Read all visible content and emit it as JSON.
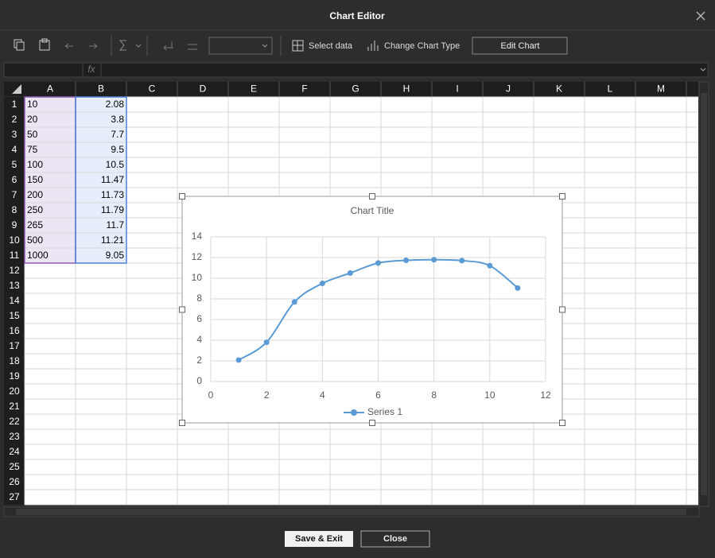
{
  "window": {
    "title": "Chart Editor"
  },
  "toolbar": {
    "select_data": "Select data",
    "change_chart_type": "Change Chart Type",
    "edit_chart": "Edit Chart"
  },
  "formula_bar": {
    "label": "fx"
  },
  "sheet": {
    "columns": [
      "A",
      "B",
      "C",
      "D",
      "E",
      "F",
      "G",
      "H",
      "I",
      "J",
      "K",
      "L",
      "M"
    ],
    "row_numbers": [
      1,
      2,
      3,
      4,
      5,
      6,
      7,
      8,
      9,
      10,
      11,
      12,
      13,
      14,
      15,
      16,
      17,
      18,
      19,
      20,
      21,
      22,
      23,
      24,
      25,
      26,
      27
    ],
    "cells": [
      [
        "10",
        "2.08"
      ],
      [
        "20",
        "3.8"
      ],
      [
        "50",
        "7.7"
      ],
      [
        "75",
        "9.5"
      ],
      [
        "100",
        "10.5"
      ],
      [
        "150",
        "11.47"
      ],
      [
        "200",
        "11.73"
      ],
      [
        "250",
        "11.79"
      ],
      [
        "265",
        "11.7"
      ],
      [
        "500",
        "11.21"
      ],
      [
        "1000",
        "9.05"
      ]
    ]
  },
  "chart_data": {
    "type": "line",
    "title": "Chart Title",
    "x": [
      1,
      2,
      3,
      4,
      5,
      6,
      7,
      8,
      9,
      10,
      11
    ],
    "series": [
      {
        "name": "Series 1",
        "color": "#5b9bd5",
        "values": [
          2.08,
          3.8,
          7.7,
          9.5,
          10.5,
          11.47,
          11.73,
          11.79,
          11.7,
          11.21,
          9.05
        ]
      }
    ],
    "xlim": [
      0,
      12
    ],
    "xticks": [
      0,
      2,
      4,
      6,
      8,
      10,
      12
    ],
    "ylim": [
      0,
      14
    ],
    "yticks": [
      0,
      2,
      4,
      6,
      8,
      10,
      12,
      14
    ],
    "grid": true,
    "smooth": true,
    "legend": "bottom"
  },
  "footer": {
    "save": "Save & Exit",
    "close": "Close"
  }
}
